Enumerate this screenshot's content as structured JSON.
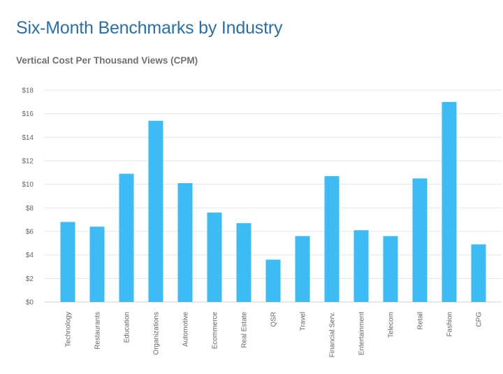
{
  "page": {
    "title": "Six-Month Benchmarks by Industry",
    "subtitle": "Vertical Cost Per Thousand Views (CPM)"
  },
  "colors": {
    "bar": "#3dbbf5",
    "grid": "#e4e4e4",
    "tick_text": "#666666",
    "title": "#2a6fa8"
  },
  "chart_data": {
    "type": "bar",
    "title": "Vertical Cost Per Thousand Views (CPM)",
    "xlabel": "",
    "ylabel": "",
    "ylim": [
      0,
      18
    ],
    "yticks": [
      0,
      2,
      4,
      6,
      8,
      10,
      12,
      14,
      16,
      18
    ],
    "ytick_labels": [
      "$0",
      "$2",
      "$4",
      "$6",
      "$8",
      "$10",
      "$12",
      "$14",
      "$16",
      "$18"
    ],
    "grid": true,
    "categories": [
      "Technology",
      "Restaurants",
      "Education",
      "Organizations",
      "Automotive",
      "Ecommerce",
      "Real Estate",
      "QSR",
      "Travel",
      "Financial Serv.",
      "Entertainment",
      "Telecom",
      "Retail",
      "Fashion",
      "CPG"
    ],
    "values": [
      6.8,
      6.4,
      10.9,
      15.4,
      10.1,
      7.6,
      6.7,
      3.6,
      5.6,
      10.7,
      6.1,
      5.6,
      10.5,
      17.0,
      4.9
    ]
  }
}
